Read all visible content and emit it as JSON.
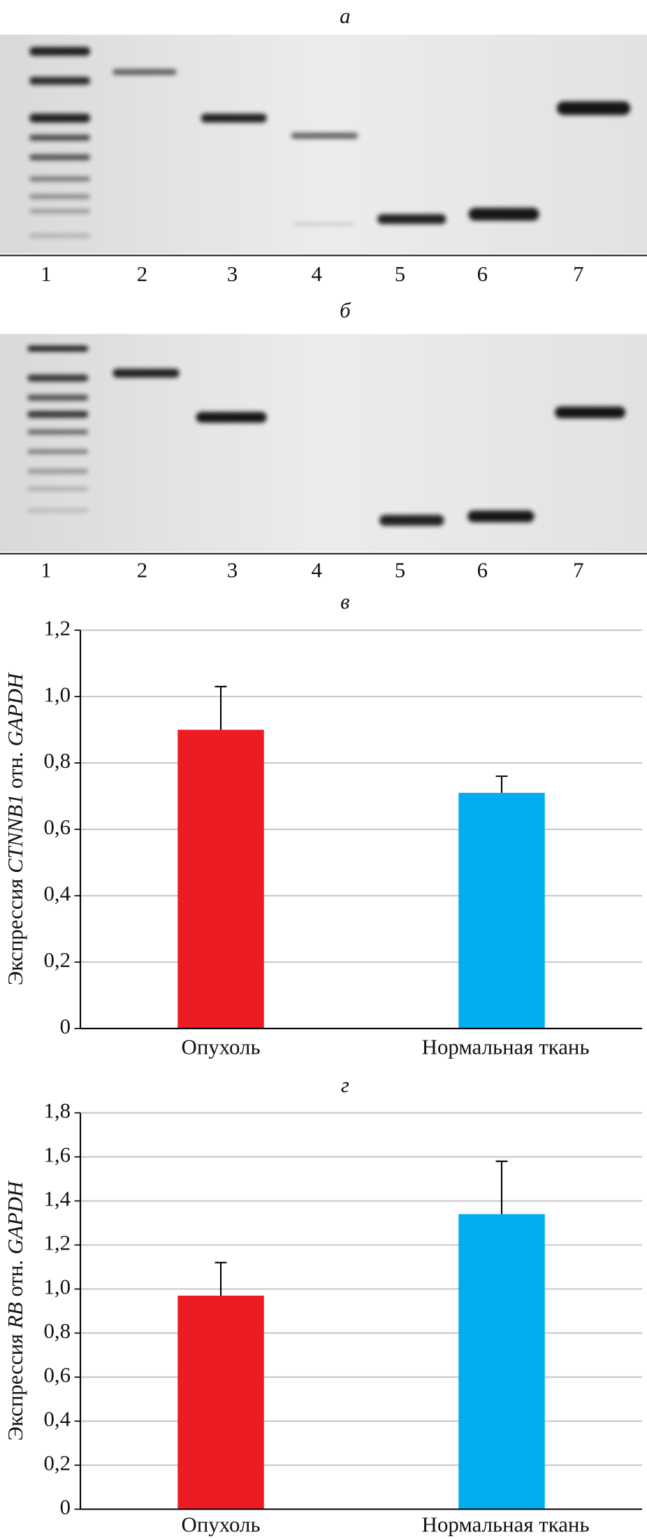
{
  "gels": [
    {
      "label": "а",
      "lanes": [
        "1",
        "2",
        "3",
        "4",
        "5",
        "6",
        "7"
      ]
    },
    {
      "label": "б",
      "lanes": [
        "1",
        "2",
        "3",
        "4",
        "5",
        "6",
        "7"
      ]
    }
  ],
  "chart_data": [
    {
      "type": "bar",
      "title": "в",
      "ylabel": [
        "Экспрессия ",
        "CTNNB1",
        " отн. ",
        "GAPDH"
      ],
      "categories": [
        "Опухоль",
        "Нормальная ткань"
      ],
      "values": [
        0.9,
        0.71
      ],
      "errors": [
        0.13,
        0.05
      ],
      "colors": [
        "#ed1c24",
        "#00aeef"
      ],
      "ylim": [
        0,
        1.2
      ],
      "yticks": [
        0,
        {
          "value": 0.2,
          "label": "0,2"
        },
        {
          "value": 0.4,
          "label": "0,4"
        },
        {
          "value": 0.6,
          "label": "0,6"
        },
        {
          "value": 0.8,
          "label": "0,8"
        },
        {
          "value": 1.0,
          "label": "1,0"
        },
        {
          "value": 1.2,
          "label": "1,2"
        }
      ],
      "grid": true
    },
    {
      "type": "bar",
      "title": "г",
      "ylabel": [
        "Экспрессия ",
        "RB",
        " отн. ",
        "GAPDH"
      ],
      "categories": [
        "Опухоль",
        "Нормальная ткань"
      ],
      "values": [
        0.97,
        1.34
      ],
      "errors": [
        0.15,
        0.24
      ],
      "colors": [
        "#ed1c24",
        "#00aeef"
      ],
      "ylim": [
        0,
        1.8
      ],
      "yticks": [
        0,
        {
          "value": 0.2,
          "label": "0,2"
        },
        {
          "value": 0.4,
          "label": "0,4"
        },
        {
          "value": 0.6,
          "label": "0,6"
        },
        {
          "value": 0.8,
          "label": "0,8"
        },
        {
          "value": 1.0,
          "label": "1,0"
        },
        {
          "value": 1.2,
          "label": "1,2"
        },
        {
          "value": 1.4,
          "label": "1,4"
        },
        {
          "value": 1.6,
          "label": "1,6"
        },
        {
          "value": 1.8,
          "label": "1,8"
        }
      ],
      "grid": true
    }
  ]
}
